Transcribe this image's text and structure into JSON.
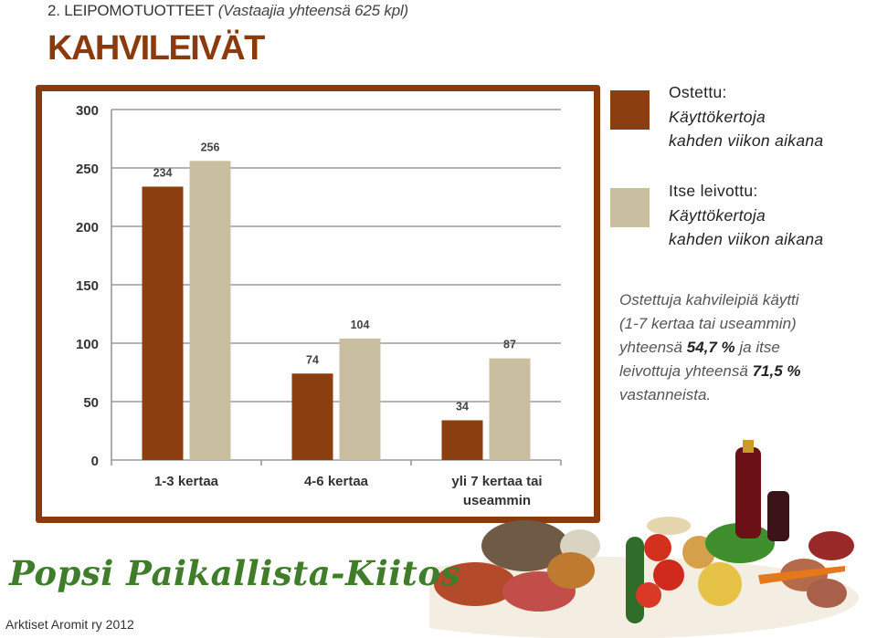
{
  "header": {
    "section": "2. LEIPOMOTUOTTEET",
    "subtitle": "(Vastaajia yhteensä 625 kpl)"
  },
  "title": "KAHVILEIVÄT",
  "legend": [
    {
      "line1": "Ostettu:",
      "line2": "Käyttökertoja",
      "line3": "kahden viikon aikana",
      "color": "#8b3f10"
    },
    {
      "line1": "Itse leivottu:",
      "line2": "Käyttökertoja",
      "line3": "kahden viikon aikana",
      "color": "#c9bfa0"
    }
  ],
  "note": {
    "line1": "Ostettuja kahvileipiä käytti",
    "line2": "(1-7 kertaa tai useammin)",
    "line3a": "yhteensä",
    "value1": "54,7 %",
    "line3b": "ja itse",
    "line4a": "leivottuja yhteensä",
    "value2": "71,5 %",
    "line5": "vastanneista."
  },
  "footer": {
    "brand": "Popsi Paikallista-Kiitos",
    "credit": "Arktiset Aromit ry 2012"
  },
  "chart_data": {
    "type": "bar",
    "categories": [
      [
        "1-3 kertaa"
      ],
      [
        "4-6 kertaa"
      ],
      [
        "yli 7 kertaa tai",
        "useammin"
      ]
    ],
    "series": [
      {
        "name": "Ostettu",
        "values": [
          234,
          74,
          34
        ],
        "color": "#8b3f10"
      },
      {
        "name": "Itse leivottu",
        "values": [
          256,
          104,
          87
        ],
        "color": "#c9bfa0"
      }
    ],
    "yticks": [
      0,
      50,
      100,
      150,
      200,
      250,
      300
    ],
    "ylim": [
      0,
      300
    ],
    "grid": true
  }
}
